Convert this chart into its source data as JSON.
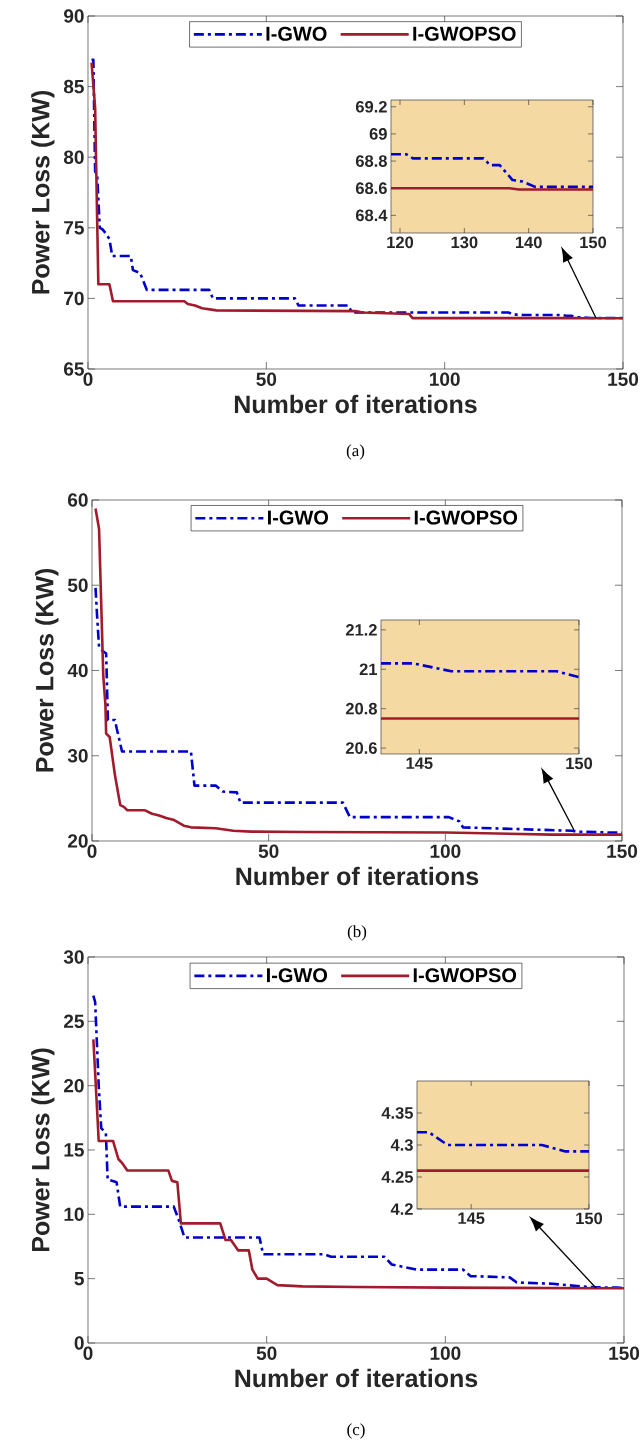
{
  "chart_data": [
    {
      "type": "line",
      "xlabel": "Number of iterations",
      "ylabel": "Power Loss (KW)",
      "annotations": [
        "(a)"
      ],
      "xlim": [
        0,
        150
      ],
      "ylim": [
        65,
        90
      ],
      "xticks": [
        0,
        50,
        100,
        150
      ],
      "yticks": [
        65,
        70,
        75,
        80,
        85,
        90
      ],
      "legend": "top",
      "series": [
        {
          "name": "I-GWO",
          "color": "#0000cc",
          "line_style": "dashed",
          "x": [
            1,
            1.5,
            2,
            2.6,
            3.3,
            4,
            5,
            6,
            6.8,
            12,
            12.6,
            14.6,
            16.5,
            34,
            35,
            58,
            59,
            73,
            74,
            118,
            119,
            121,
            122,
            133,
            134,
            135.5,
            137.5,
            139,
            141,
            150
          ],
          "values": [
            86.9,
            86.9,
            79,
            78.6,
            75,
            74.9,
            74.6,
            74.2,
            73,
            73,
            72,
            71.8,
            70.6,
            70.6,
            70,
            70,
            69.5,
            69.5,
            69,
            69,
            68.85,
            68.85,
            68.82,
            68.82,
            68.77,
            68.77,
            68.66,
            68.65,
            68.61,
            68.61
          ]
        },
        {
          "name": "I-GWOPSO",
          "color": "#a01c2c",
          "line_style": "solid",
          "x": [
            1,
            2,
            2.9,
            6,
            7,
            27,
            28,
            30,
            32,
            36,
            75,
            77,
            90,
            91,
            137,
            138.5,
            150
          ],
          "values": [
            86.7,
            83.5,
            71,
            71,
            69.8,
            69.8,
            69.6,
            69.5,
            69.3,
            69.15,
            69.1,
            69,
            68.9,
            68.6,
            68.6,
            68.59,
            68.59
          ]
        }
      ]
    },
    {
      "type": "line",
      "xlim": [
        118.6,
        150
      ],
      "ylim": [
        68.27,
        69.25
      ],
      "xticks": [
        120,
        130,
        140,
        150
      ],
      "yticks": [
        68.4,
        68.6,
        68.8,
        69,
        69.2
      ],
      "series": [
        {
          "color": "#0000cc",
          "line_style": "dashed",
          "x": [
            118.6,
            121,
            122,
            133,
            134,
            135.5,
            137.5,
            139,
            141,
            150
          ],
          "values": [
            68.85,
            68.85,
            68.82,
            68.82,
            68.77,
            68.77,
            68.66,
            68.65,
            68.61,
            68.61
          ]
        },
        {
          "color": "#a01c2c",
          "line_style": "solid",
          "x": [
            118.6,
            137,
            138.5,
            150
          ],
          "values": [
            68.6,
            68.6,
            68.59,
            68.59
          ]
        }
      ]
    },
    {
      "type": "line",
      "xlabel": "Number of iterations",
      "ylabel": "Power Loss (KW)",
      "annotations": [
        "(b)"
      ],
      "xlim": [
        0,
        150
      ],
      "ylim": [
        20,
        60
      ],
      "xticks": [
        0,
        50,
        100,
        150
      ],
      "yticks": [
        20,
        30,
        40,
        50,
        60
      ],
      "legend": "top",
      "series": [
        {
          "name": "I-GWO",
          "color": "#0000cc",
          "line_style": "dashed",
          "x": [
            1,
            1.5,
            2,
            3,
            4,
            4.5,
            6.5,
            7,
            8.5,
            28,
            29,
            35,
            37,
            41,
            42,
            71,
            73,
            101,
            104,
            105,
            120,
            136,
            137,
            143.8,
            144.8,
            146,
            149.3,
            150
          ],
          "values": [
            49.7,
            46,
            42.7,
            42.3,
            42,
            34.2,
            34.2,
            33.2,
            30.5,
            30.5,
            26.5,
            26.5,
            25.8,
            25.7,
            24.5,
            24.5,
            22.8,
            22.8,
            22.3,
            21.6,
            21.4,
            21.2,
            21.1,
            21.03,
            21.03,
            20.99,
            20.99,
            20.96
          ]
        },
        {
          "name": "I-GWOPSO",
          "color": "#a01c2c",
          "line_style": "solid",
          "x": [
            1,
            2,
            3.2,
            3.8,
            4,
            5,
            6.5,
            8,
            9,
            10,
            15,
            17,
            19,
            21,
            23,
            26,
            28,
            35,
            40,
            45,
            60,
            100,
            130,
            150
          ],
          "values": [
            59,
            56.6,
            39.3,
            36,
            32.6,
            32.2,
            27.7,
            24.2,
            24,
            23.6,
            23.6,
            23.2,
            23,
            22.7,
            22.5,
            21.8,
            21.6,
            21.5,
            21.2,
            21.1,
            21.05,
            21,
            20.75,
            20.75
          ]
        }
      ]
    },
    {
      "type": "line",
      "xlim": [
        143.8,
        150
      ],
      "ylim": [
        20.57,
        21.25
      ],
      "xticks": [
        145,
        150
      ],
      "yticks": [
        20.6,
        20.8,
        21,
        21.2
      ],
      "series": [
        {
          "color": "#0000cc",
          "line_style": "dashed",
          "x": [
            143.8,
            144.8,
            146,
            149.3,
            150
          ],
          "values": [
            21.03,
            21.03,
            20.99,
            20.99,
            20.96
          ]
        },
        {
          "color": "#a01c2c",
          "line_style": "solid",
          "x": [
            143.8,
            150
          ],
          "values": [
            20.75,
            20.75
          ]
        }
      ]
    },
    {
      "type": "line",
      "xlabel": "Number of iterations",
      "ylabel": "Power Loss (KW)",
      "annotations": [
        "(c)"
      ],
      "xlim": [
        0,
        150
      ],
      "ylim": [
        0,
        30
      ],
      "xticks": [
        0,
        50,
        100,
        150
      ],
      "yticks": [
        0,
        5,
        10,
        15,
        20,
        25,
        30
      ],
      "legend": "top",
      "series": [
        {
          "name": "I-GWO",
          "color": "#0000cc",
          "line_style": "dashed",
          "x": [
            1.5,
            2,
            3,
            3.7,
            5,
            5.5,
            8,
            9,
            24,
            25.5,
            27,
            48,
            49,
            66,
            68,
            83,
            85,
            92,
            105,
            107,
            118,
            120,
            130,
            140,
            142.7,
            143.2,
            144,
            148,
            149,
            150
          ],
          "values": [
            27,
            26.5,
            20,
            16.7,
            16.3,
            12.7,
            12.5,
            10.6,
            10.6,
            9.5,
            8.2,
            8.2,
            6.9,
            6.9,
            6.7,
            6.7,
            6.1,
            5.7,
            5.7,
            5.2,
            5.1,
            4.7,
            4.6,
            4.35,
            4.32,
            4.32,
            4.3,
            4.3,
            4.29,
            4.29
          ]
        },
        {
          "name": "I-GWOPSO",
          "color": "#a01c2c",
          "line_style": "solid",
          "x": [
            1.5,
            2,
            3,
            7,
            8.5,
            9.5,
            11,
            22.5,
            23.5,
            25,
            26,
            37,
            38.5,
            40,
            42,
            45,
            46,
            47.5,
            50,
            53,
            60,
            75,
            100,
            142.7,
            150
          ],
          "values": [
            23.6,
            21,
            15.7,
            15.7,
            14.3,
            14,
            13.4,
            13.4,
            12.6,
            12.5,
            9.3,
            9.3,
            8,
            8,
            7.2,
            7.2,
            5.7,
            5,
            5,
            4.5,
            4.4,
            4.35,
            4.3,
            4.26,
            4.26
          ]
        }
      ]
    },
    {
      "type": "line",
      "xlim": [
        142.7,
        150
      ],
      "ylim": [
        4.2,
        4.4
      ],
      "xticks": [
        145,
        150
      ],
      "yticks": [
        4.2,
        4.25,
        4.3,
        4.35
      ],
      "series": [
        {
          "color": "#0000cc",
          "line_style": "dashed",
          "x": [
            142.7,
            143.2,
            144,
            148,
            149,
            150
          ],
          "values": [
            4.32,
            4.32,
            4.3,
            4.3,
            4.29,
            4.29
          ]
        },
        {
          "color": "#a01c2c",
          "line_style": "solid",
          "x": [
            142.7,
            150
          ],
          "values": [
            4.26,
            4.26
          ]
        }
      ]
    }
  ]
}
